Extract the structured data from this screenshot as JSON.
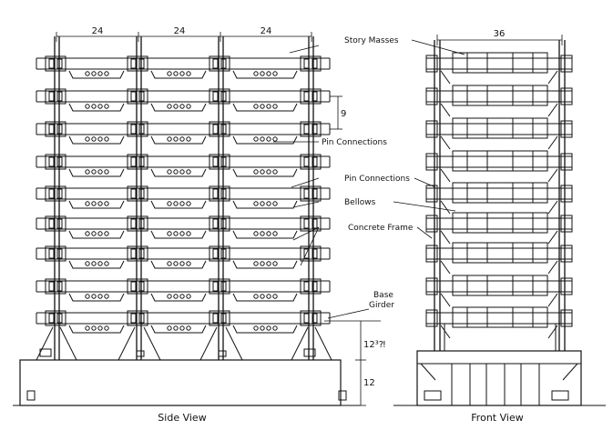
{
  "side_view": {
    "caption": "Side View",
    "dims": {
      "span_1": "24",
      "span_2": "24",
      "span_3": "24",
      "story_height": "9",
      "girder_gap": "12³⁈",
      "base_height": "12"
    }
  },
  "front_view": {
    "caption": "Front View",
    "dims": {
      "width": "36"
    }
  },
  "callouts": {
    "story_masses": "Story Masses",
    "pin_connections_1": "Pin Connections",
    "pin_connections_2": "Pin Connections",
    "bellows": "Bellows",
    "concrete_frame": "Concrete Frame",
    "base_1": "Base",
    "base_2": "Girder"
  }
}
